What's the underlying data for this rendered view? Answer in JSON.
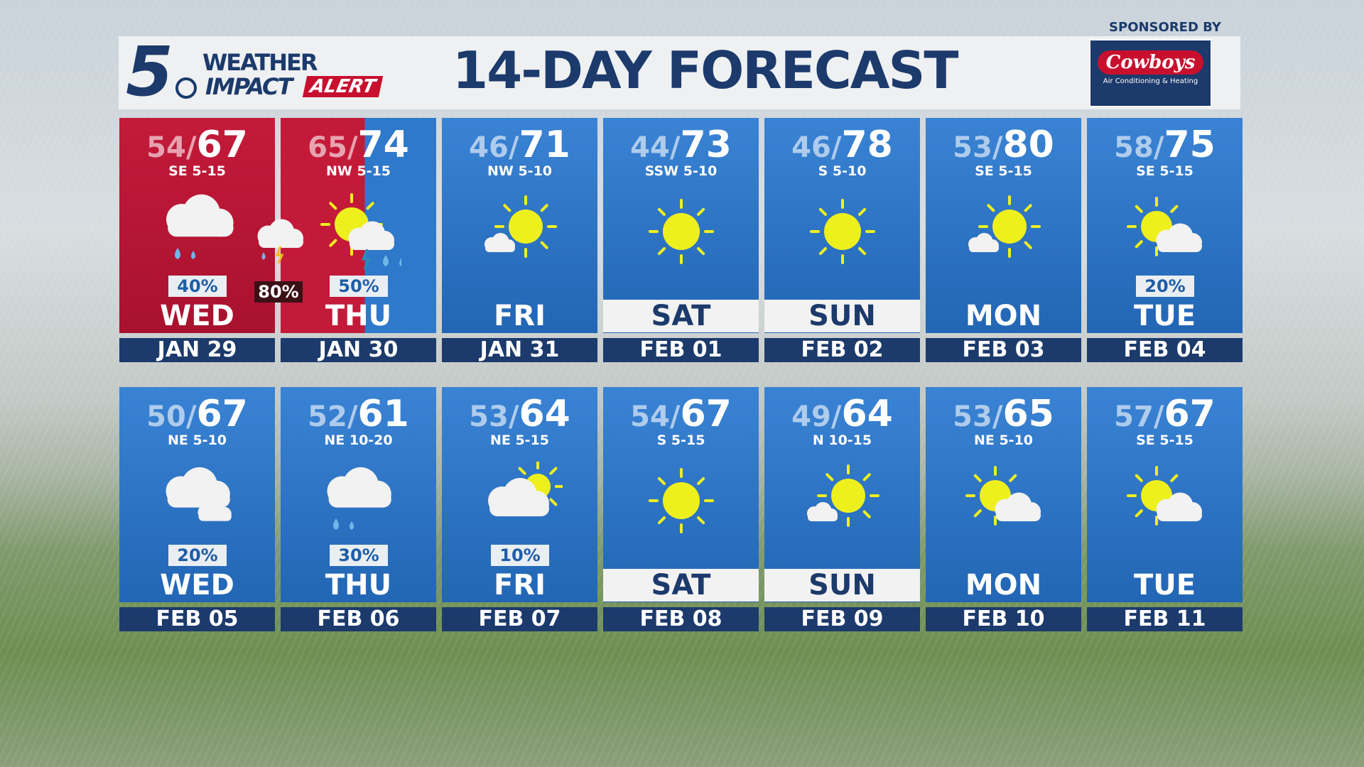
{
  "header": {
    "title": "14-DAY FORECAST",
    "logo_number": "5",
    "logo_weather": "WEATHER",
    "logo_impact": "IMPACT",
    "logo_alert": "ALERT",
    "sponsor_label": "SPONSORED BY",
    "sponsor_name": "Cowboys",
    "sponsor_sub": "Air Conditioning & Heating"
  },
  "colors": {
    "navy": "#1c3a6b",
    "alert_red": "#c41a3a",
    "card_blue": "#2f79cb",
    "sun": "#f0f020"
  },
  "overnight": {
    "icon": "thunderstorm-icon",
    "precip": "80%"
  },
  "days": [
    {
      "lo": "54",
      "hi": "67",
      "wind": "SE 5-15",
      "icon": "rain",
      "precip": "40%",
      "day": "WED",
      "date": "JAN 29",
      "style": "red"
    },
    {
      "lo": "65",
      "hi": "74",
      "wind": "NW 5-15",
      "icon": "sun-storm",
      "precip": "50%",
      "day": "THU",
      "date": "JAN 30",
      "style": "split"
    },
    {
      "lo": "46",
      "hi": "71",
      "wind": "NW 5-10",
      "icon": "mostly-sunny",
      "precip": "",
      "day": "FRI",
      "date": "JAN 31",
      "style": "blue"
    },
    {
      "lo": "44",
      "hi": "73",
      "wind": "SSW 5-10",
      "icon": "sunny",
      "precip": "",
      "day": "SAT",
      "date": "FEB 01",
      "style": "weekend"
    },
    {
      "lo": "46",
      "hi": "78",
      "wind": "S 5-10",
      "icon": "sunny",
      "precip": "",
      "day": "SUN",
      "date": "FEB 02",
      "style": "weekend"
    },
    {
      "lo": "53",
      "hi": "80",
      "wind": "SE 5-15",
      "icon": "mostly-sunny",
      "precip": "",
      "day": "MON",
      "date": "FEB 03",
      "style": "blue"
    },
    {
      "lo": "58",
      "hi": "75",
      "wind": "SE 5-15",
      "icon": "partly-cloudy",
      "precip": "20%",
      "day": "TUE",
      "date": "FEB 04",
      "style": "blue"
    },
    {
      "lo": "50",
      "hi": "67",
      "wind": "NE 5-10",
      "icon": "cloudy",
      "precip": "20%",
      "day": "WED",
      "date": "FEB 05",
      "style": "blue"
    },
    {
      "lo": "52",
      "hi": "61",
      "wind": "NE 10-20",
      "icon": "rain-cloud",
      "precip": "30%",
      "day": "THU",
      "date": "FEB 06",
      "style": "blue"
    },
    {
      "lo": "53",
      "hi": "64",
      "wind": "NE 5-15",
      "icon": "mostly-cloudy",
      "precip": "10%",
      "day": "FRI",
      "date": "FEB 07",
      "style": "blue"
    },
    {
      "lo": "54",
      "hi": "67",
      "wind": "S 5-15",
      "icon": "sunny",
      "precip": "",
      "day": "SAT",
      "date": "FEB 08",
      "style": "weekend"
    },
    {
      "lo": "49",
      "hi": "64",
      "wind": "N 10-15",
      "icon": "mostly-sunny",
      "precip": "",
      "day": "SUN",
      "date": "FEB 09",
      "style": "weekend"
    },
    {
      "lo": "53",
      "hi": "65",
      "wind": "NE 5-10",
      "icon": "partly-cloudy",
      "precip": "",
      "day": "MON",
      "date": "FEB 10",
      "style": "blue"
    },
    {
      "lo": "57",
      "hi": "67",
      "wind": "SE 5-15",
      "icon": "partly-cloudy",
      "precip": "",
      "day": "TUE",
      "date": "FEB 11",
      "style": "blue"
    }
  ]
}
